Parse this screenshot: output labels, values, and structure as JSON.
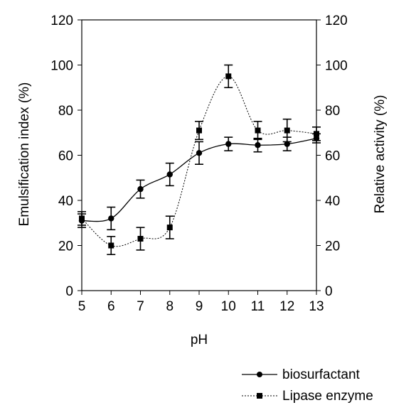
{
  "chart_data": {
    "type": "line",
    "title": "",
    "xlabel": "pH",
    "ylabel_left": "Emulsification index (%)",
    "ylabel_right": "Relative activity (%)",
    "x": [
      5,
      6,
      7,
      8,
      9,
      10,
      11,
      12,
      13
    ],
    "xlim": [
      5,
      13
    ],
    "ylim_left": [
      0,
      120
    ],
    "ylim_right": [
      0,
      120
    ],
    "x_ticks": [
      "5",
      "6",
      "7",
      "8",
      "9",
      "10",
      "11",
      "12",
      "13"
    ],
    "y_ticks_left": [
      "0",
      "20",
      "40",
      "60",
      "80",
      "100",
      "120"
    ],
    "y_ticks_right": [
      "0",
      "20",
      "40",
      "60",
      "80",
      "100",
      "120"
    ],
    "grid": false,
    "legend_position": "bottom-right",
    "series": [
      {
        "name": "biosurfactant",
        "axis": "left",
        "marker": "circle",
        "line_style": "solid",
        "color": "#000000",
        "values": [
          31,
          32,
          45,
          51.5,
          61,
          65,
          64.5,
          65,
          67.5
        ],
        "errors": [
          3,
          5,
          4,
          5,
          5,
          3,
          3,
          3,
          2
        ]
      },
      {
        "name": "Lipase enzyme",
        "axis": "right",
        "marker": "square",
        "line_style": "dotted",
        "color": "#000000",
        "values": [
          32,
          20,
          23,
          28,
          71,
          95,
          71,
          71,
          69.5
        ],
        "errors": [
          3,
          4,
          5,
          5,
          4,
          5,
          4,
          5,
          3
        ]
      }
    ]
  }
}
